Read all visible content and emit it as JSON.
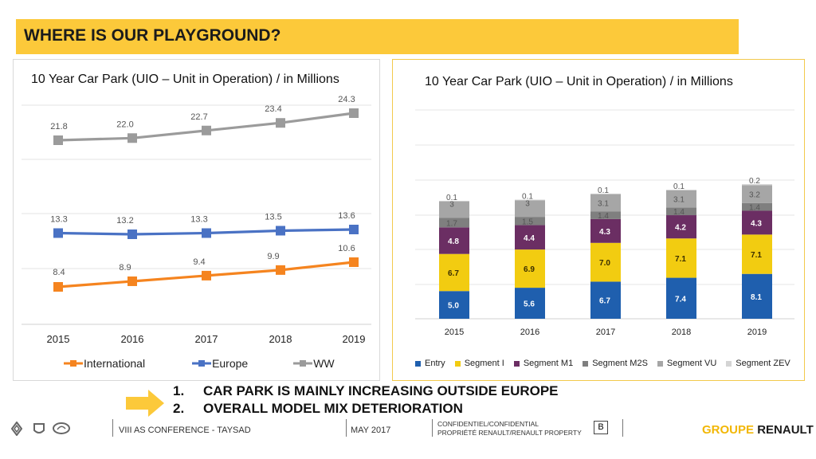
{
  "header": {
    "title": "WHERE IS OUR PLAYGROUND?"
  },
  "colors": {
    "accent": "#fcc93a",
    "international": "#f5841f",
    "europe": "#4a72c4",
    "ww": "#9b9b9b",
    "entry": "#1f5fae",
    "segment_i": "#f2cc11",
    "segment_m1": "#6b2e63",
    "segment_m2s": "#7f7f7f",
    "segment_vu": "#a6a6a6",
    "segment_zev": "#d4d4d4"
  },
  "chart_data": [
    {
      "type": "line",
      "title": "10 Year Car Park (UIO – Unit in Operation) / in Millions",
      "categories": [
        "2015",
        "2016",
        "2017",
        "2018",
        "2019"
      ],
      "series": [
        {
          "name": "WW",
          "values": [
            21.8,
            22.0,
            22.7,
            23.4,
            24.3
          ],
          "labels": [
            "21.8",
            "22.0",
            "22.7",
            "23.4",
            "24.3"
          ]
        },
        {
          "name": "Europe",
          "values": [
            13.3,
            13.2,
            13.3,
            13.5,
            13.6
          ],
          "labels": [
            "13.3",
            "13.2",
            "13.3",
            "13.5",
            "13.6"
          ]
        },
        {
          "name": "International",
          "values": [
            8.4,
            8.9,
            9.4,
            9.9,
            10.6
          ],
          "labels": [
            "8.4",
            "8.9",
            "9.4",
            "9.9",
            "10.6"
          ]
        }
      ],
      "legend": [
        "International",
        "Europe",
        "WW"
      ],
      "legend_position": "bottom",
      "grid": true
    },
    {
      "type": "bar",
      "stacked": true,
      "title": "10 Year Car Park (UIO – Unit in Operation) / in Millions",
      "categories": [
        "2015",
        "2016",
        "2017",
        "2018",
        "2019"
      ],
      "series": [
        {
          "name": "Entry",
          "values": [
            5.0,
            5.6,
            6.7,
            7.4,
            8.1
          ],
          "labels": [
            "5.0",
            "5.6",
            "6.7",
            "7.4",
            "8.1"
          ]
        },
        {
          "name": "Segment I",
          "values": [
            6.7,
            6.9,
            7.0,
            7.1,
            7.1
          ],
          "labels": [
            "6.7",
            "6.9",
            "7.0",
            "7.1",
            "7.1"
          ]
        },
        {
          "name": "Segment M1",
          "values": [
            4.8,
            4.4,
            4.3,
            4.2,
            4.3
          ],
          "labels": [
            "4.8",
            "4.4",
            "4.3",
            "4.2",
            "4.3"
          ]
        },
        {
          "name": "Segment M2S",
          "values": [
            1.7,
            1.5,
            1.4,
            1.4,
            1.4
          ],
          "labels": [
            "1.7",
            "1.5",
            "1.4",
            "1.4",
            "1.4"
          ]
        },
        {
          "name": "Segment VU",
          "values": [
            3.0,
            3.0,
            3.1,
            3.1,
            3.2
          ],
          "labels": [
            "3",
            "3",
            "3.1",
            "3.1",
            "3.2"
          ]
        },
        {
          "name": "Segment ZEV",
          "values": [
            0.1,
            0.1,
            0.1,
            0.1,
            0.2
          ],
          "labels": [
            "0.1",
            "0.1",
            "0.1",
            "0.1",
            "0.2"
          ]
        }
      ],
      "legend_position": "bottom",
      "grid": true
    }
  ],
  "conclusions": [
    {
      "number": "1.",
      "text": "CAR PARK IS MAINLY INCREASING OUTSIDE EUROPE"
    },
    {
      "number": "2.",
      "text": "OVERALL MODEL MIX DETERIORATION"
    }
  ],
  "footer": {
    "event": "VIII AS CONFERENCE - TAYSAD",
    "date": "MAY 2017",
    "confidential_line1": "CONFIDENTIEL/CONFIDENTIAL",
    "confidential_line2": "PROPRIÉTÉ RENAULT/RENAULT PROPERTY",
    "classification": "B",
    "brand_part1": "GROUPE",
    "brand_part2": "RENAULT",
    "logos": [
      "renault-logo-icon",
      "dacia-logo-icon",
      "lada-logo-icon"
    ]
  }
}
